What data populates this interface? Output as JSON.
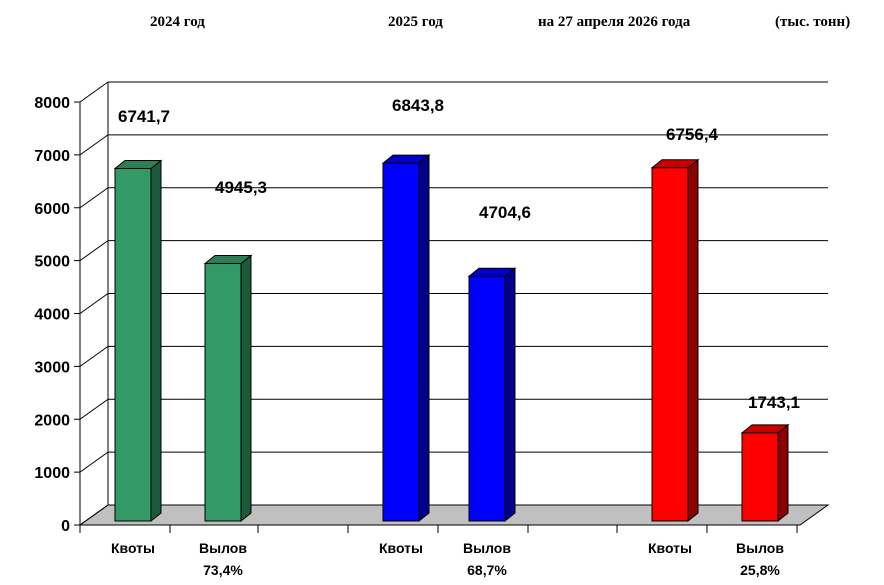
{
  "header": {
    "group1": "2024  год",
    "group2": "2025  год",
    "group3": "на 27 апреля 2026 года",
    "units": "(тыс. тонн)"
  },
  "chart_data": {
    "type": "bar",
    "ylim": [
      0,
      8000
    ],
    "yticks": [
      0,
      1000,
      2000,
      3000,
      4000,
      5000,
      6000,
      7000,
      8000
    ],
    "ytick_labels": [
      "0",
      "1000",
      "2000",
      "3000",
      "4000",
      "5000",
      "6000",
      "7000",
      "8000"
    ],
    "grid": true,
    "groups": [
      {
        "label": "2024  год",
        "bars": [
          {
            "category": "Квоты",
            "sublabel": "",
            "value": 6741.7,
            "value_label": "6741,7",
            "color": "#339966",
            "side_color": "#1d5a3c",
            "top_color": "#2a7f54"
          },
          {
            "category": "Вылов",
            "sublabel": "73,4%",
            "value": 4945.3,
            "value_label": "4945,3",
            "color": "#339966",
            "side_color": "#1d5a3c",
            "top_color": "#2a7f54"
          }
        ]
      },
      {
        "label": "2025  год",
        "bars": [
          {
            "category": "Квоты",
            "sublabel": "",
            "value": 6843.8,
            "value_label": "6843,8",
            "color": "#0000ff",
            "side_color": "#00008b",
            "top_color": "#0000c8"
          },
          {
            "category": "Вылов",
            "sublabel": "68,7%",
            "value": 4704.6,
            "value_label": "4704,6",
            "color": "#0000ff",
            "side_color": "#00008b",
            "top_color": "#0000c8"
          }
        ]
      },
      {
        "label": "на 27 апреля 2026 года",
        "bars": [
          {
            "category": "Квоты",
            "sublabel": "",
            "value": 6756.4,
            "value_label": "6756,4",
            "color": "#ff0000",
            "side_color": "#8b0000",
            "top_color": "#c80000"
          },
          {
            "category": "Вылов",
            "sublabel": "25,8%",
            "value": 1743.1,
            "value_label": "1743,1",
            "color": "#ff0000",
            "side_color": "#8b0000",
            "top_color": "#c80000"
          }
        ]
      }
    ],
    "floor_color": "#c0c0c0"
  }
}
